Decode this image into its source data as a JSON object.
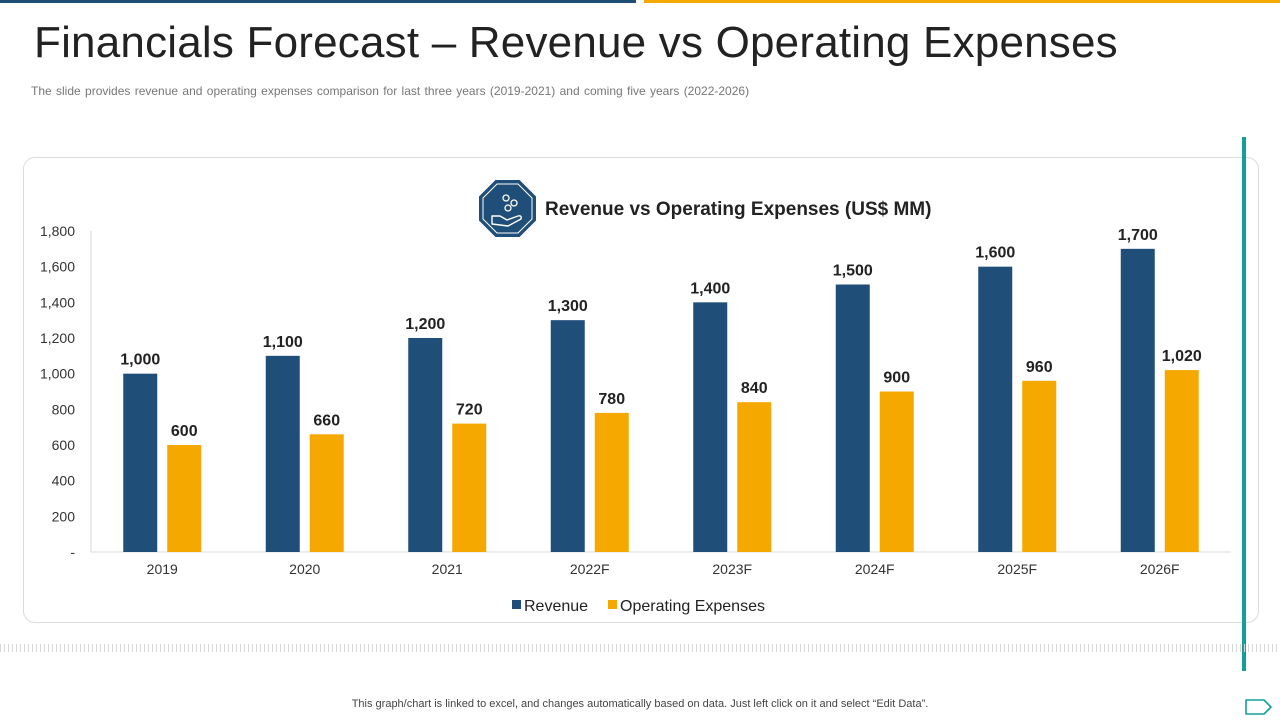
{
  "slide": {
    "title": "Financials Forecast – Revenue vs Operating Expenses",
    "subtitle": "The slide provides revenue  and operating expenses comparison for last three years (2019-2021)  and coming five  years (2022-2026)",
    "footnote": "This graph/chart is linked to excel,  and changes automatically based on data. Just left click on it and select “Edit Data”."
  },
  "colors": {
    "revenue": "#1f4e79",
    "operating_expenses": "#f5a800",
    "accent_teal": "#13a197",
    "badge": "#1f4e79"
  },
  "icons": {
    "chart_badge": "hand-with-coins-icon",
    "corner": "arrow-tag-icon"
  },
  "chart_data": {
    "type": "bar",
    "title": "Revenue vs Operating Expenses (US$ MM)",
    "categories": [
      "2019",
      "2020",
      "2021",
      "2022F",
      "2023F",
      "2024F",
      "2025F",
      "2026F"
    ],
    "series": [
      {
        "name": "Revenue",
        "values": [
          1000,
          1100,
          1200,
          1300,
          1400,
          1500,
          1600,
          1700
        ],
        "labels": [
          "1,000",
          "1,100",
          "1,200",
          "1,300",
          "1,400",
          "1,500",
          "1,600",
          "1,700"
        ]
      },
      {
        "name": "Operating Expenses",
        "values": [
          600,
          660,
          720,
          780,
          840,
          900,
          960,
          1020
        ],
        "labels": [
          "600",
          "660",
          "720",
          "780",
          "840",
          "900",
          "960",
          "1,020"
        ]
      }
    ],
    "y_ticks": [
      0,
      200,
      400,
      600,
      800,
      1000,
      1200,
      1400,
      1600,
      1800
    ],
    "y_tick_labels": [
      "-",
      "200",
      "400",
      "600",
      "800",
      "1,000",
      "1,200",
      "1,400",
      "1,600",
      "1,800"
    ],
    "ylim": [
      0,
      1800
    ],
    "xlabel": "",
    "ylabel": "",
    "grid": false,
    "legend": "bottom-center"
  }
}
